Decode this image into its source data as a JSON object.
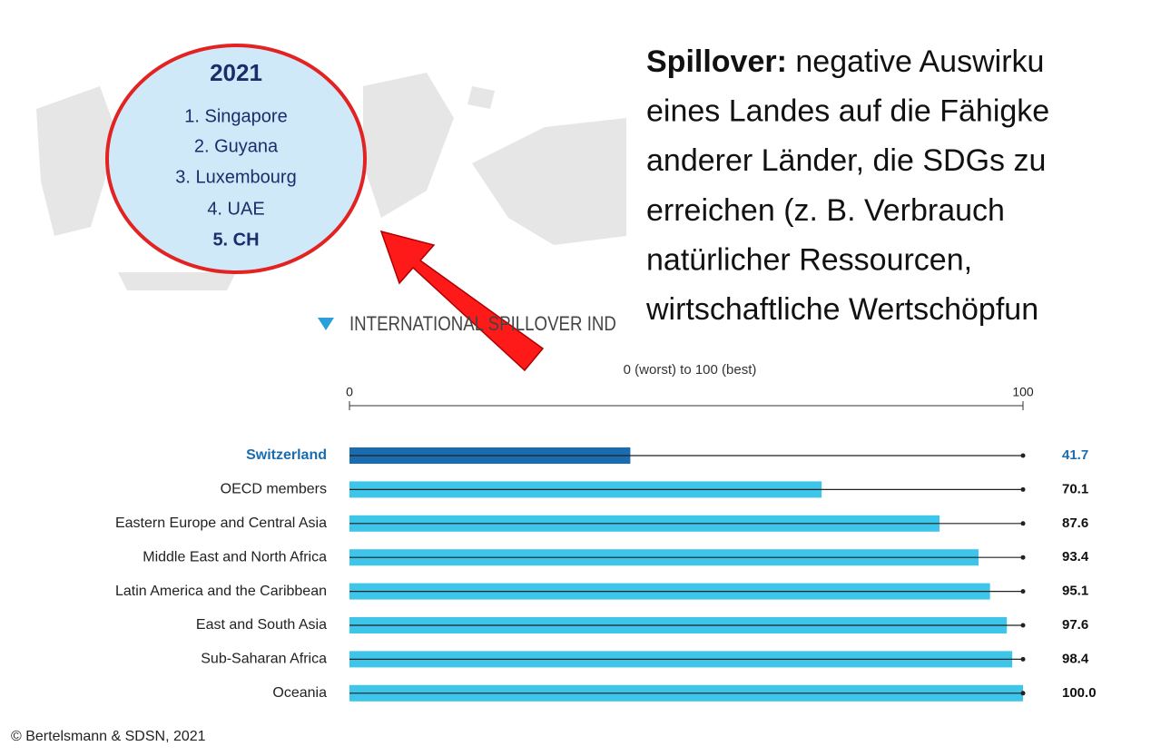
{
  "chart_data": {
    "type": "bar",
    "orientation": "horizontal",
    "title": "INTERNATIONAL SPILLOVER IND",
    "x_label": "0 (worst) to 100 (best)",
    "categories": [
      "Switzerland",
      "OECD members",
      "Eastern Europe and Central Asia",
      "Middle East and North Africa",
      "Latin America and the Caribbean",
      "East and South Asia",
      "Sub-Saharan Africa",
      "Oceania"
    ],
    "values": [
      41.7,
      70.1,
      87.6,
      93.4,
      95.1,
      97.6,
      98.4,
      100
    ],
    "value_labels": [
      "41.7",
      "70.1",
      "87.6",
      "93.4",
      "95.1",
      "97.6",
      "98.4",
      "100.0"
    ],
    "color": "#3ec5ea",
    "colors": [
      "#1a6cb0",
      "#3ec5ea",
      "#3ec5ea",
      "#3ec5ea",
      "#3ec5ea",
      "#3ec5ea",
      "#3ec5ea",
      "#3ec5ea"
    ],
    "xlim": [
      0,
      100
    ],
    "xticks": [
      0,
      100
    ],
    "source": "© Bertelsmann & SDSN, 2021"
  },
  "ranking": {
    "year": "2021",
    "items": [
      "1. Singapore",
      "2. Guyana",
      "3. Luxembourg",
      "4. UAE",
      "5. CH"
    ]
  },
  "definition": {
    "term": "Spillover:",
    "lines": [
      "negative Auswirku",
      "eines Landes auf die Fähigke",
      "anderer Länder, die SDGs zu",
      "erreichen (z. B. Verbrauch",
      "natürlicher Ressourcen,",
      "wirtschaftliche Wertschöpfun"
    ]
  }
}
